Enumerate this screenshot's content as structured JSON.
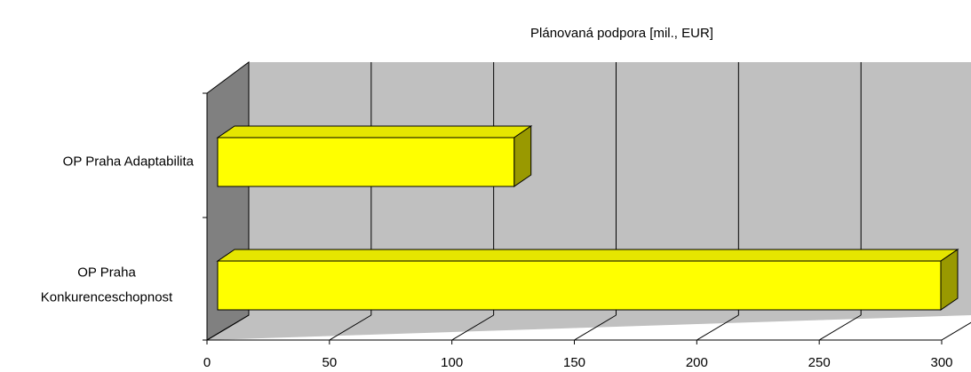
{
  "chart_data": {
    "type": "bar3d_horizontal",
    "title": "Plánovaná podpora [mil., EUR]",
    "categories": [
      "OP Praha Adaptabilita",
      "OP Praha Konkurenceschopnost"
    ],
    "values": [
      123,
      300
    ],
    "color": "#ffff00",
    "xlim": [
      0,
      300
    ],
    "xticks": [
      0,
      50,
      100,
      150,
      200,
      250,
      300
    ],
    "grid": true
  }
}
